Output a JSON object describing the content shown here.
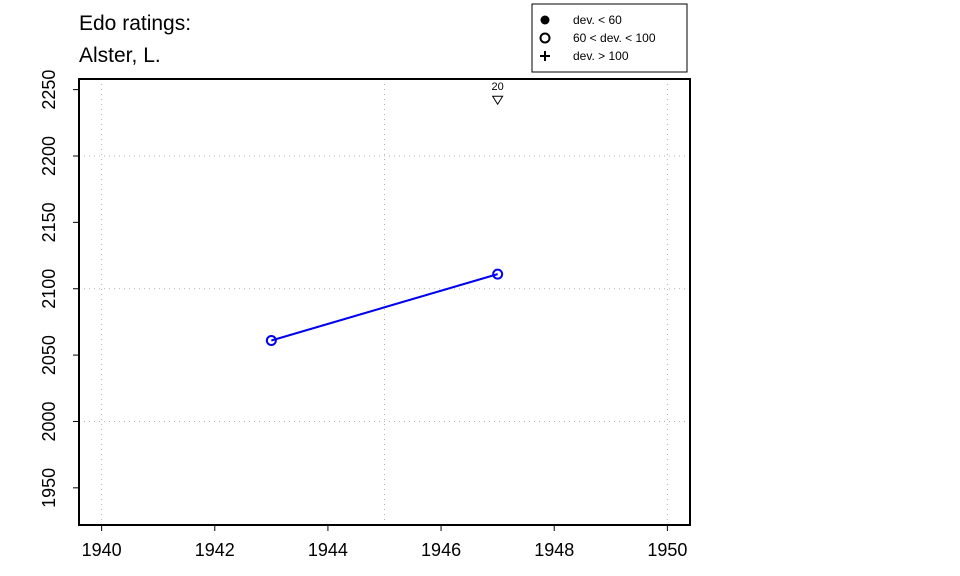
{
  "chart_data": {
    "type": "line",
    "title_lines": [
      "Edo ratings:",
      "Alster, L."
    ],
    "xlabel": "",
    "ylabel": "",
    "xlim": [
      1939.6,
      1950.4
    ],
    "ylim": [
      1922,
      2258
    ],
    "xticks": [
      1940,
      1942,
      1944,
      1946,
      1948,
      1950
    ],
    "yticks": [
      1950,
      2000,
      2050,
      2100,
      2150,
      2200,
      2250
    ],
    "xgrid": [
      1940,
      1945,
      1950
    ],
    "ygrid": [
      2000,
      2100,
      2200
    ],
    "grid": true,
    "series": [
      {
        "color": "#0000ee",
        "marker": "open-circle",
        "points": [
          {
            "x": 1943,
            "y": 2061
          },
          {
            "x": 1947,
            "y": 2111
          }
        ]
      }
    ],
    "annotations": [
      {
        "x": 1947,
        "y": 2242,
        "marker": "open-triangle-down",
        "label": "20"
      }
    ],
    "legend": {
      "placement": "top-right",
      "entries": [
        {
          "marker": "filled-circle",
          "label": "dev. < 60"
        },
        {
          "marker": "open-circle",
          "label": "60 < dev. < 100"
        },
        {
          "marker": "plus",
          "label": "dev. > 100"
        }
      ]
    }
  }
}
